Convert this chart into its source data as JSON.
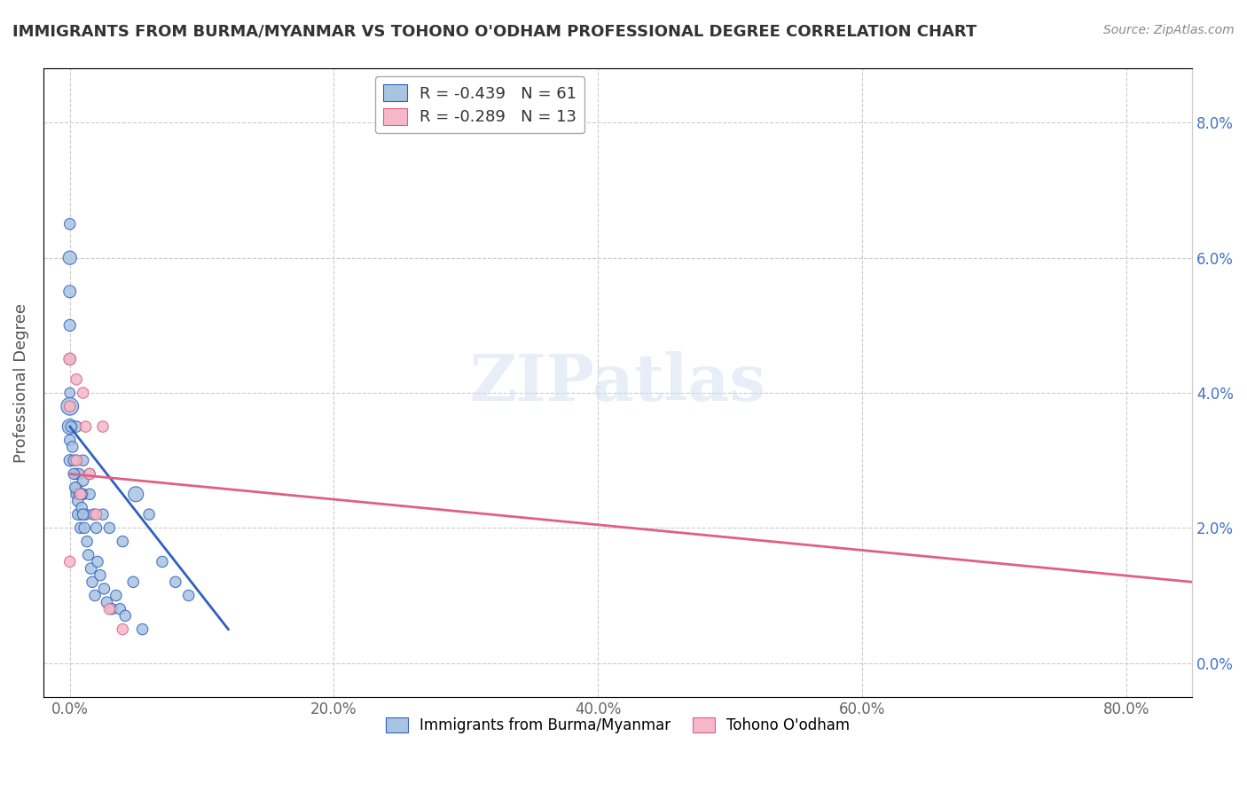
{
  "title": "IMMIGRANTS FROM BURMA/MYANMAR VS TOHONO O'ODHAM PROFESSIONAL DEGREE CORRELATION CHART",
  "source": "Source: ZipAtlas.com",
  "xlabel": "",
  "ylabel": "Professional Degree",
  "x_tick_labels": [
    "0.0%",
    "20.0%",
    "40.0%",
    "60.0%",
    "80.0%"
  ],
  "x_tick_values": [
    0.0,
    0.2,
    0.4,
    0.6,
    0.8
  ],
  "y_tick_labels": [
    "0.0%",
    "2.0%",
    "4.0%",
    "6.0%",
    "8.0%"
  ],
  "y_tick_values": [
    0.0,
    0.02,
    0.04,
    0.06,
    0.08
  ],
  "xlim": [
    -0.02,
    0.85
  ],
  "ylim": [
    -0.005,
    0.088
  ],
  "legend_entry1": "R = -0.439   N = 61",
  "legend_entry2": "R = -0.289   N = 13",
  "legend_label1": "Immigrants from Burma/Myanmar",
  "legend_label2": "Tohono O'odham",
  "color_blue": "#a8c4e0",
  "color_pink": "#f4b8c8",
  "line_color_blue": "#3060c0",
  "line_color_pink": "#e06080",
  "watermark": "ZIPatlas",
  "blue_scatter_x": [
    0.0,
    0.0,
    0.0,
    0.0,
    0.0,
    0.0,
    0.0,
    0.0,
    0.0,
    0.0,
    0.005,
    0.005,
    0.005,
    0.005,
    0.005,
    0.007,
    0.007,
    0.008,
    0.01,
    0.01,
    0.01,
    0.012,
    0.015,
    0.015,
    0.018,
    0.02,
    0.025,
    0.03,
    0.04,
    0.05,
    0.06,
    0.07,
    0.08,
    0.09,
    0.001,
    0.002,
    0.003,
    0.003,
    0.004,
    0.006,
    0.006,
    0.008,
    0.009,
    0.009,
    0.01,
    0.011,
    0.013,
    0.014,
    0.016,
    0.017,
    0.019,
    0.021,
    0.023,
    0.026,
    0.028,
    0.032,
    0.035,
    0.038,
    0.042,
    0.048,
    0.055
  ],
  "blue_scatter_y": [
    0.065,
    0.06,
    0.055,
    0.05,
    0.045,
    0.04,
    0.038,
    0.035,
    0.033,
    0.03,
    0.035,
    0.03,
    0.028,
    0.026,
    0.025,
    0.028,
    0.025,
    0.022,
    0.03,
    0.027,
    0.025,
    0.022,
    0.028,
    0.025,
    0.022,
    0.02,
    0.022,
    0.02,
    0.018,
    0.025,
    0.022,
    0.015,
    0.012,
    0.01,
    0.035,
    0.032,
    0.03,
    0.028,
    0.026,
    0.024,
    0.022,
    0.02,
    0.025,
    0.023,
    0.022,
    0.02,
    0.018,
    0.016,
    0.014,
    0.012,
    0.01,
    0.015,
    0.013,
    0.011,
    0.009,
    0.008,
    0.01,
    0.008,
    0.007,
    0.012,
    0.005
  ],
  "blue_scatter_sizes": [
    80,
    120,
    100,
    90,
    80,
    70,
    200,
    150,
    80,
    90,
    80,
    80,
    80,
    80,
    80,
    80,
    80,
    80,
    80,
    80,
    80,
    80,
    80,
    80,
    80,
    80,
    80,
    80,
    80,
    150,
    80,
    80,
    80,
    80,
    80,
    80,
    80,
    80,
    80,
    80,
    80,
    80,
    80,
    80,
    80,
    80,
    80,
    80,
    80,
    80,
    80,
    80,
    80,
    80,
    80,
    80,
    80,
    80,
    80,
    80,
    80
  ],
  "pink_scatter_x": [
    0.0,
    0.0,
    0.0,
    0.005,
    0.005,
    0.008,
    0.01,
    0.012,
    0.015,
    0.02,
    0.025,
    0.03,
    0.04
  ],
  "pink_scatter_y": [
    0.045,
    0.038,
    0.015,
    0.042,
    0.03,
    0.025,
    0.04,
    0.035,
    0.028,
    0.022,
    0.035,
    0.008,
    0.005
  ],
  "pink_scatter_sizes": [
    100,
    80,
    80,
    80,
    80,
    80,
    80,
    80,
    80,
    80,
    80,
    80,
    80
  ],
  "blue_line_x": [
    0.0,
    0.12
  ],
  "blue_line_y": [
    0.035,
    0.005
  ],
  "pink_line_x": [
    0.0,
    0.85
  ],
  "pink_line_y": [
    0.028,
    0.012
  ],
  "grid_color": "#cccccc",
  "grid_style": "--",
  "background_color": "#ffffff"
}
